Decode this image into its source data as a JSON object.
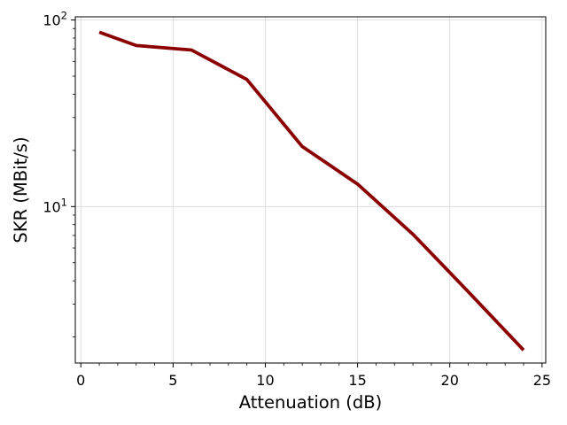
{
  "chart_data": {
    "type": "line",
    "xlabel": "Attenuation (dB)",
    "ylabel": "SKR (MBit/s)",
    "xlim": [
      -0.3,
      25.2
    ],
    "ylim": [
      1.45,
      104
    ],
    "yscale": "log",
    "grid": true,
    "xticks": [
      0,
      5,
      10,
      15,
      20,
      25
    ],
    "xtick_labels": [
      "0",
      "5",
      "10",
      "15",
      "20",
      "25"
    ],
    "yticks": [
      10,
      100
    ],
    "ytick_labels": [
      {
        "base": "10",
        "exp": "1"
      },
      {
        "base": "10",
        "exp": "2"
      }
    ],
    "series": [
      {
        "color": "#8b0000",
        "x": [
          1,
          3,
          6,
          9,
          12,
          15,
          18,
          21,
          24
        ],
        "y": [
          86,
          73,
          69,
          48,
          21,
          13.2,
          7.1,
          3.5,
          1.7
        ]
      }
    ]
  }
}
